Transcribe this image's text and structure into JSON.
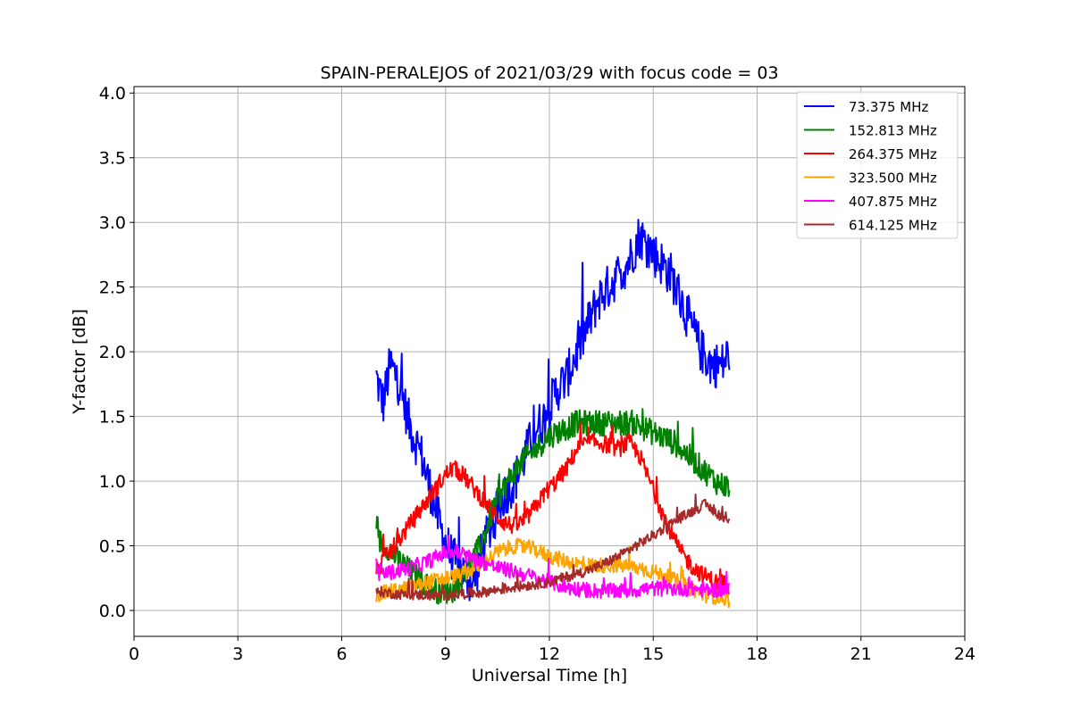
{
  "chart_data": {
    "type": "line",
    "title": "SPAIN-PERALEJOS of 2021/03/29 with focus code = 03",
    "xlabel": "Universal Time [h]",
    "ylabel": "Y-factor [dB]",
    "xlim": [
      0,
      24
    ],
    "ylim": [
      -0.2,
      4.05
    ],
    "xticks": [
      0,
      3,
      6,
      9,
      12,
      15,
      18,
      21,
      24
    ],
    "xtick_labels": [
      "0",
      "3",
      "6",
      "9",
      "12",
      "15",
      "18",
      "21",
      "24"
    ],
    "yticks": [
      0.0,
      0.5,
      1.0,
      1.5,
      2.0,
      2.5,
      3.0,
      3.5,
      4.0
    ],
    "ytick_labels": [
      "0.0",
      "0.5",
      "1.0",
      "1.5",
      "2.0",
      "2.5",
      "3.0",
      "3.5",
      "4.0"
    ],
    "grid": true,
    "legend_position": "top-right",
    "series": [
      {
        "name": " 73.375 MHz",
        "color": "#0000ff",
        "noise": 0.18,
        "x": [
          7.0,
          7.2,
          7.4,
          7.6,
          7.8,
          8.0,
          8.3,
          8.6,
          8.9,
          9.2,
          9.5,
          9.8,
          10.1,
          10.4,
          10.7,
          11.0,
          11.3,
          11.6,
          11.9,
          12.2,
          12.5,
          12.8,
          13.1,
          13.4,
          13.7,
          14.0,
          14.3,
          14.6,
          14.9,
          15.2,
          15.5,
          15.8,
          16.1,
          16.4,
          16.7,
          17.0,
          17.2
        ],
        "y": [
          1.8,
          1.6,
          1.9,
          1.8,
          1.6,
          1.4,
          1.2,
          0.9,
          0.6,
          0.4,
          0.3,
          0.2,
          0.5,
          0.7,
          0.9,
          1.0,
          1.2,
          1.4,
          1.5,
          1.7,
          1.8,
          2.0,
          2.2,
          2.4,
          2.5,
          2.6,
          2.7,
          2.9,
          2.8,
          2.7,
          2.6,
          2.4,
          2.2,
          2.0,
          1.9,
          1.9,
          2.0
        ]
      },
      {
        "name": "152.813 MHz",
        "color": "#008000",
        "noise": 0.1,
        "x": [
          7.0,
          7.3,
          7.6,
          8.0,
          8.4,
          8.8,
          9.2,
          9.6,
          10.0,
          10.4,
          10.8,
          11.2,
          11.6,
          12.0,
          12.4,
          12.8,
          13.2,
          13.6,
          14.0,
          14.4,
          14.8,
          15.2,
          15.6,
          16.0,
          16.4,
          16.8,
          17.2
        ],
        "y": [
          0.55,
          0.5,
          0.4,
          0.3,
          0.2,
          0.15,
          0.15,
          0.3,
          0.5,
          0.8,
          1.0,
          1.15,
          1.25,
          1.35,
          1.4,
          1.45,
          1.45,
          1.45,
          1.45,
          1.45,
          1.4,
          1.35,
          1.3,
          1.2,
          1.1,
          1.0,
          0.95
        ]
      },
      {
        "name": "264.375 MHz",
        "color": "#ff0000",
        "noise": 0.07,
        "x": [
          7.0,
          7.4,
          7.8,
          8.2,
          8.6,
          9.0,
          9.2,
          9.5,
          9.8,
          10.1,
          10.4,
          10.7,
          11.0,
          11.3,
          11.6,
          11.9,
          12.2,
          12.5,
          12.8,
          13.1,
          13.4,
          13.7,
          14.0,
          14.3,
          14.6,
          14.9,
          15.2,
          15.5,
          15.8,
          16.1,
          16.4,
          16.8,
          17.2
        ],
        "y": [
          0.3,
          0.45,
          0.6,
          0.75,
          0.9,
          1.05,
          1.1,
          1.05,
          0.95,
          0.85,
          0.75,
          0.68,
          0.65,
          0.7,
          0.8,
          0.92,
          1.0,
          1.1,
          1.25,
          1.3,
          1.3,
          1.28,
          1.25,
          1.3,
          1.2,
          1.0,
          0.8,
          0.6,
          0.45,
          0.35,
          0.28,
          0.22,
          0.2
        ]
      },
      {
        "name": "323.500 MHz",
        "color": "#ffa500",
        "noise": 0.06,
        "x": [
          7.0,
          7.5,
          8.0,
          8.5,
          9.0,
          9.5,
          10.0,
          10.5,
          11.0,
          11.5,
          12.0,
          12.5,
          13.0,
          13.5,
          14.0,
          14.5,
          15.0,
          15.5,
          16.0,
          16.5,
          17.0,
          17.2
        ],
        "y": [
          0.12,
          0.15,
          0.18,
          0.22,
          0.25,
          0.28,
          0.35,
          0.45,
          0.5,
          0.48,
          0.42,
          0.38,
          0.35,
          0.35,
          0.35,
          0.33,
          0.3,
          0.25,
          0.18,
          0.12,
          0.1,
          0.08
        ]
      },
      {
        "name": "407.875 MHz",
        "color": "#ff00ff",
        "noise": 0.06,
        "x": [
          7.0,
          7.5,
          8.0,
          8.5,
          9.0,
          9.3,
          9.6,
          10.0,
          10.5,
          11.0,
          11.5,
          12.0,
          12.5,
          13.0,
          13.5,
          14.0,
          14.5,
          15.0,
          15.5,
          16.0,
          16.5,
          17.0,
          17.2
        ],
        "y": [
          0.28,
          0.3,
          0.33,
          0.38,
          0.45,
          0.45,
          0.42,
          0.38,
          0.33,
          0.3,
          0.26,
          0.22,
          0.18,
          0.16,
          0.15,
          0.15,
          0.16,
          0.17,
          0.17,
          0.17,
          0.16,
          0.16,
          0.16
        ]
      },
      {
        "name": "614.125 MHz",
        "color": "#a52a2a",
        "noise": 0.04,
        "x": [
          7.0,
          7.5,
          8.0,
          8.5,
          9.0,
          9.5,
          10.0,
          10.5,
          11.0,
          11.5,
          12.0,
          12.5,
          13.0,
          13.5,
          14.0,
          14.5,
          15.0,
          15.5,
          16.0,
          16.5,
          17.0,
          17.2
        ],
        "y": [
          0.15,
          0.13,
          0.12,
          0.12,
          0.12,
          0.13,
          0.14,
          0.16,
          0.18,
          0.2,
          0.22,
          0.26,
          0.3,
          0.35,
          0.42,
          0.5,
          0.58,
          0.67,
          0.75,
          0.82,
          0.72,
          0.68
        ]
      }
    ]
  }
}
